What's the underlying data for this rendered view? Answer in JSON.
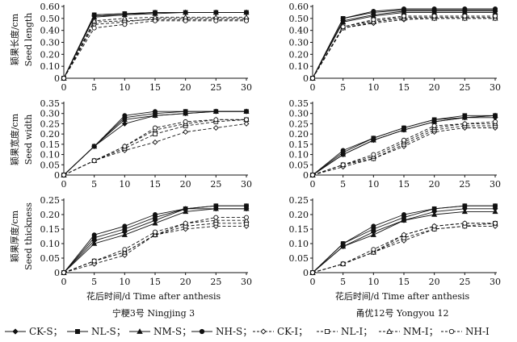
{
  "figure": {
    "x_axis_label": "花后时间/d   Time after anthesis",
    "varieties": [
      "宁粳3号 Ningjing 3",
      "甬优12号 Yongyou 12"
    ],
    "y_axis_labels": [
      {
        "cn": "颖果长度/cm",
        "en": "Seed length"
      },
      {
        "cn": "颖果宽度/cm",
        "en": "Seed width"
      },
      {
        "cn": "颖果厚度/cm",
        "en": "Seed thickness"
      }
    ]
  },
  "legend": [
    {
      "label": "CK-S；",
      "marker": "diamond",
      "filled": true,
      "dash": false
    },
    {
      "label": "NL-S；",
      "marker": "square",
      "filled": true,
      "dash": false
    },
    {
      "label": "NM-S；",
      "marker": "triangle",
      "filled": true,
      "dash": false
    },
    {
      "label": "NH-S；",
      "marker": "circle",
      "filled": true,
      "dash": false
    },
    {
      "label": "CK-I；",
      "marker": "diamond",
      "filled": false,
      "dash": true
    },
    {
      "label": "NL-I；",
      "marker": "square",
      "filled": false,
      "dash": true
    },
    {
      "label": "NM-I；",
      "marker": "triangle",
      "filled": false,
      "dash": true
    },
    {
      "label": "NH-I",
      "marker": "circle",
      "filled": false,
      "dash": true
    }
  ],
  "chart_data": [
    {
      "type": "line",
      "panel": "Ningjing 3 - Seed length",
      "x": [
        0,
        5,
        10,
        15,
        20,
        25,
        30
      ],
      "ylim": [
        0,
        0.6
      ],
      "yticks": [
        "0",
        "0.10",
        "0.20",
        "0.30",
        "0.40",
        "0.50",
        "0.60"
      ],
      "series": [
        {
          "name": "CK-S",
          "values": [
            0,
            0.52,
            0.53,
            0.55,
            0.55,
            0.55,
            0.55
          ]
        },
        {
          "name": "NL-S",
          "values": [
            0,
            0.53,
            0.54,
            0.55,
            0.55,
            0.55,
            0.55
          ]
        },
        {
          "name": "NM-S",
          "values": [
            0,
            0.51,
            0.53,
            0.54,
            0.55,
            0.55,
            0.55
          ]
        },
        {
          "name": "NH-S",
          "values": [
            0,
            0.53,
            0.54,
            0.55,
            0.55,
            0.55,
            0.55
          ]
        },
        {
          "name": "CK-I",
          "values": [
            0,
            0.45,
            0.47,
            0.5,
            0.5,
            0.5,
            0.5
          ]
        },
        {
          "name": "NL-I",
          "values": [
            0,
            0.47,
            0.48,
            0.49,
            0.49,
            0.49,
            0.49
          ]
        },
        {
          "name": "NM-I",
          "values": [
            0,
            0.48,
            0.5,
            0.51,
            0.51,
            0.51,
            0.51
          ]
        },
        {
          "name": "NH-I",
          "values": [
            0,
            0.42,
            0.45,
            0.48,
            0.48,
            0.48,
            0.48
          ]
        }
      ]
    },
    {
      "type": "line",
      "panel": "Yongyou 12 - Seed length",
      "x": [
        0,
        5,
        10,
        15,
        20,
        25,
        30
      ],
      "ylim": [
        0,
        0.6
      ],
      "yticks": [
        "0",
        "0.10",
        "0.20",
        "0.30",
        "0.40",
        "0.50",
        "0.60"
      ],
      "series": [
        {
          "name": "CK-S",
          "values": [
            0,
            0.48,
            0.53,
            0.56,
            0.56,
            0.56,
            0.56
          ]
        },
        {
          "name": "NL-S",
          "values": [
            0,
            0.5,
            0.55,
            0.57,
            0.57,
            0.57,
            0.57
          ]
        },
        {
          "name": "NM-S",
          "values": [
            0,
            0.47,
            0.52,
            0.55,
            0.55,
            0.55,
            0.55
          ]
        },
        {
          "name": "NH-S",
          "values": [
            0,
            0.5,
            0.56,
            0.58,
            0.58,
            0.58,
            0.58
          ]
        },
        {
          "name": "CK-I",
          "values": [
            0,
            0.42,
            0.46,
            0.49,
            0.5,
            0.5,
            0.5
          ]
        },
        {
          "name": "NL-I",
          "values": [
            0,
            0.43,
            0.48,
            0.51,
            0.51,
            0.51,
            0.51
          ]
        },
        {
          "name": "NM-I",
          "values": [
            0,
            0.42,
            0.47,
            0.5,
            0.5,
            0.5,
            0.5
          ]
        },
        {
          "name": "NH-I",
          "values": [
            0,
            0.43,
            0.49,
            0.52,
            0.52,
            0.52,
            0.52
          ]
        }
      ]
    },
    {
      "type": "line",
      "panel": "Ningjing 3 - Seed width",
      "x": [
        0,
        5,
        10,
        15,
        20,
        25,
        30
      ],
      "ylim": [
        0,
        0.35
      ],
      "yticks": [
        "0",
        "0.05",
        "0.10",
        "0.15",
        "0.20",
        "0.25",
        "0.30",
        "0.35"
      ],
      "series": [
        {
          "name": "CK-S",
          "values": [
            0,
            0.14,
            0.25,
            0.29,
            0.3,
            0.31,
            0.31
          ]
        },
        {
          "name": "NL-S",
          "values": [
            0,
            0.14,
            0.28,
            0.3,
            0.31,
            0.31,
            0.31
          ]
        },
        {
          "name": "NM-S",
          "values": [
            0,
            0.14,
            0.27,
            0.29,
            0.3,
            0.31,
            0.31
          ]
        },
        {
          "name": "NH-S",
          "values": [
            0,
            0.14,
            0.29,
            0.31,
            0.31,
            0.31,
            0.31
          ]
        },
        {
          "name": "CK-I",
          "values": [
            0,
            0.07,
            0.12,
            0.16,
            0.21,
            0.23,
            0.25
          ]
        },
        {
          "name": "NL-I",
          "values": [
            0,
            0.07,
            0.13,
            0.2,
            0.24,
            0.26,
            0.27
          ]
        },
        {
          "name": "NM-I",
          "values": [
            0,
            0.07,
            0.14,
            0.22,
            0.25,
            0.27,
            0.27
          ]
        },
        {
          "name": "NH-I",
          "values": [
            0,
            0.07,
            0.14,
            0.23,
            0.26,
            0.27,
            0.27
          ]
        }
      ]
    },
    {
      "type": "line",
      "panel": "Yongyou 12 - Seed width",
      "x": [
        0,
        5,
        10,
        15,
        20,
        25,
        30
      ],
      "ylim": [
        0,
        0.35
      ],
      "yticks": [
        "0",
        "0.05",
        "0.10",
        "0.15",
        "0.20",
        "0.25",
        "0.30",
        "0.35"
      ],
      "series": [
        {
          "name": "CK-S",
          "values": [
            0,
            0.1,
            0.17,
            0.22,
            0.26,
            0.28,
            0.28
          ]
        },
        {
          "name": "NL-S",
          "values": [
            0,
            0.11,
            0.18,
            0.23,
            0.27,
            0.29,
            0.29
          ]
        },
        {
          "name": "NM-S",
          "values": [
            0,
            0.1,
            0.17,
            0.22,
            0.26,
            0.28,
            0.29
          ]
        },
        {
          "name": "NH-S",
          "values": [
            0,
            0.12,
            0.18,
            0.23,
            0.27,
            0.28,
            0.29
          ]
        },
        {
          "name": "CK-I",
          "values": [
            0,
            0.04,
            0.08,
            0.14,
            0.21,
            0.23,
            0.23
          ]
        },
        {
          "name": "NL-I",
          "values": [
            0,
            0.05,
            0.08,
            0.15,
            0.22,
            0.24,
            0.24
          ]
        },
        {
          "name": "NM-I",
          "values": [
            0,
            0.05,
            0.09,
            0.16,
            0.23,
            0.25,
            0.25
          ]
        },
        {
          "name": "NH-I",
          "values": [
            0,
            0.05,
            0.1,
            0.17,
            0.24,
            0.25,
            0.26
          ]
        }
      ]
    },
    {
      "type": "line",
      "panel": "Ningjing 3 - Seed thickness",
      "x": [
        0,
        5,
        10,
        15,
        20,
        25,
        30
      ],
      "ylim": [
        0,
        0.25
      ],
      "yticks": [
        "0",
        "0.05",
        "0.10",
        "0.15",
        "0.20",
        "0.25"
      ],
      "series": [
        {
          "name": "CK-S",
          "values": [
            0,
            0.11,
            0.14,
            0.18,
            0.22,
            0.22,
            0.22
          ]
        },
        {
          "name": "NL-S",
          "values": [
            0,
            0.12,
            0.15,
            0.19,
            0.22,
            0.23,
            0.23
          ]
        },
        {
          "name": "NM-S",
          "values": [
            0,
            0.1,
            0.13,
            0.17,
            0.21,
            0.22,
            0.22
          ]
        },
        {
          "name": "NH-S",
          "values": [
            0,
            0.13,
            0.16,
            0.2,
            0.22,
            0.23,
            0.23
          ]
        },
        {
          "name": "CK-I",
          "values": [
            0,
            0.03,
            0.06,
            0.13,
            0.15,
            0.16,
            0.16
          ]
        },
        {
          "name": "NL-I",
          "values": [
            0,
            0.04,
            0.07,
            0.13,
            0.16,
            0.17,
            0.17
          ]
        },
        {
          "name": "NM-I",
          "values": [
            0,
            0.04,
            0.07,
            0.13,
            0.17,
            0.18,
            0.18
          ]
        },
        {
          "name": "NH-I",
          "values": [
            0,
            0.04,
            0.08,
            0.14,
            0.17,
            0.19,
            0.19
          ]
        }
      ]
    },
    {
      "type": "line",
      "panel": "Yongyou 12 - Seed thickness",
      "x": [
        0,
        5,
        10,
        15,
        20,
        25,
        30
      ],
      "ylim": [
        0,
        0.25
      ],
      "yticks": [
        "0",
        "0.05",
        "0.10",
        "0.15",
        "0.20",
        "0.25"
      ],
      "series": [
        {
          "name": "CK-S",
          "values": [
            0,
            0.09,
            0.14,
            0.18,
            0.21,
            0.22,
            0.22
          ]
        },
        {
          "name": "NL-S",
          "values": [
            0,
            0.1,
            0.15,
            0.19,
            0.22,
            0.23,
            0.23
          ]
        },
        {
          "name": "NM-S",
          "values": [
            0,
            0.09,
            0.13,
            0.18,
            0.2,
            0.21,
            0.21
          ]
        },
        {
          "name": "NH-S",
          "values": [
            0,
            0.1,
            0.16,
            0.2,
            0.22,
            0.23,
            0.23
          ]
        },
        {
          "name": "CK-I",
          "values": [
            0,
            0.03,
            0.07,
            0.11,
            0.15,
            0.16,
            0.16
          ]
        },
        {
          "name": "NL-I",
          "values": [
            0,
            0.03,
            0.07,
            0.12,
            0.15,
            0.16,
            0.17
          ]
        },
        {
          "name": "NM-I",
          "values": [
            0,
            0.03,
            0.07,
            0.13,
            0.16,
            0.17,
            0.17
          ]
        },
        {
          "name": "NH-I",
          "values": [
            0,
            0.03,
            0.08,
            0.13,
            0.16,
            0.17,
            0.17
          ]
        }
      ]
    }
  ]
}
